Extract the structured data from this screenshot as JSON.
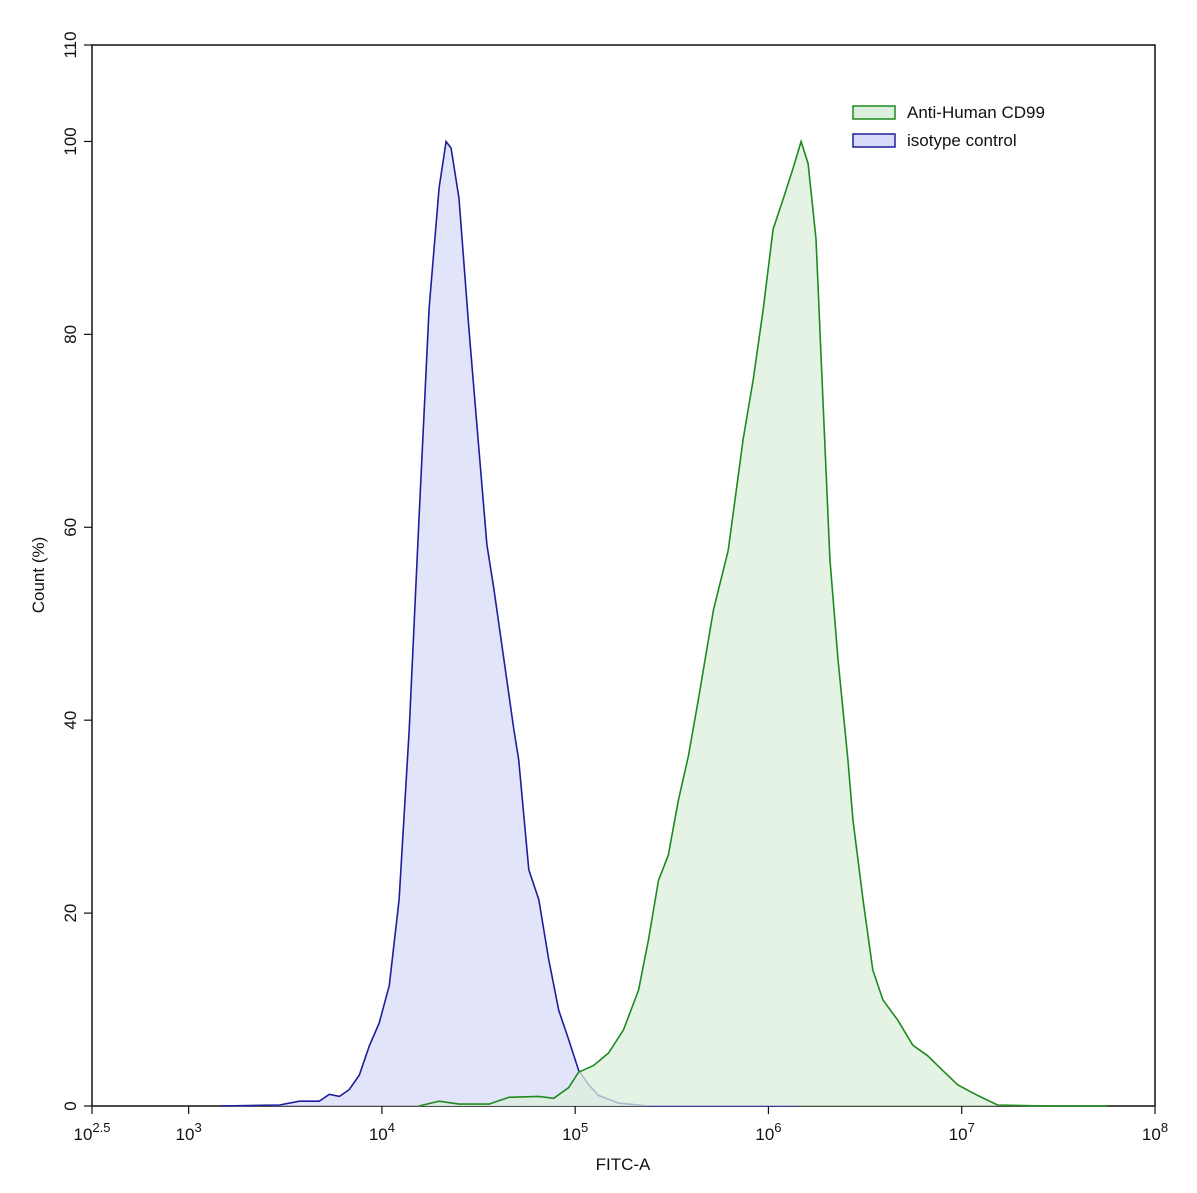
{
  "chart_data": {
    "type": "histogram-overlay",
    "x_label": "FITC-A",
    "y_label": "Count  (%)",
    "xscale": "log",
    "xlim": [
      316.2278,
      100000000
    ],
    "ylim": [
      0,
      110
    ],
    "xticks": [
      {
        "value": 316.2278,
        "label": "10",
        "exponent": "2.5"
      },
      {
        "value": 1000,
        "label": "10",
        "exponent": "3"
      },
      {
        "value": 10000,
        "label": "10",
        "exponent": "4"
      },
      {
        "value": 100000,
        "label": "10",
        "exponent": "5"
      },
      {
        "value": 1000000,
        "label": "10",
        "exponent": "6"
      },
      {
        "value": 10000000,
        "label": "10",
        "exponent": "7"
      },
      {
        "value": 100000000,
        "label": "10",
        "exponent": "8"
      }
    ],
    "yticks": [
      0,
      20,
      40,
      60,
      80,
      100,
      110
    ],
    "legend": "upper right",
    "series": [
      {
        "name": "isotype control",
        "color": "#1b1f9a",
        "fill": "#d8dbf7",
        "x": [
          1445,
          2951,
          3741,
          4742,
          5346,
          6026,
          6776,
          7638,
          8590,
          9683,
          10914,
          12275,
          13836,
          15560,
          17539,
          19770,
          21478,
          22798,
          25061,
          28184,
          31769,
          34914,
          37977,
          42756,
          48193,
          51050,
          57544,
          64863,
          72946,
          82224,
          92470,
          104200,
          117500,
          132100,
          167500,
          239300,
          1422000
        ],
        "values": [
          0,
          0.1,
          0.5,
          0.5,
          1.2,
          1.0,
          1.7,
          3.2,
          6.2,
          8.6,
          12.5,
          21.4,
          39.0,
          60.9,
          82.7,
          95.2,
          100,
          99.3,
          94.1,
          80.6,
          68.1,
          58.2,
          53.6,
          46.3,
          39.0,
          35.9,
          24.5,
          21.4,
          15.2,
          9.9,
          6.9,
          3.7,
          2.2,
          1.1,
          0.3,
          0,
          0
        ]
      },
      {
        "name": "Anti-Human CD99",
        "color": "#1e8a1e",
        "fill": "#dcefdc",
        "x": [
          15560,
          19770,
          25061,
          35800,
          45400,
          64900,
          77400,
          92500,
          104200,
          124500,
          148900,
          177800,
          212700,
          239300,
          269800,
          303400,
          342000,
          385500,
          433500,
          518800,
          619400,
          739600,
          833700,
          939700,
          1057000,
          1191000,
          1340000,
          1475000,
          1603000,
          1762000,
          1914000,
          2080000,
          2291000,
          2576000,
          2735000,
          3083000,
          3467000,
          3908000,
          4667000,
          5585000,
          6668000,
          7962000,
          9528000,
          12080000,
          15310000,
          27730000,
          56620000
        ],
        "values": [
          0,
          0.5,
          0.2,
          0.2,
          0.9,
          1.0,
          0.8,
          1.9,
          3.5,
          4.2,
          5.5,
          7.9,
          12.0,
          17.2,
          23.4,
          26.0,
          31.7,
          36.3,
          42.1,
          51.4,
          57.6,
          69.1,
          75.3,
          82.6,
          90.9,
          94.0,
          97.2,
          100,
          97.7,
          89.9,
          73.3,
          56.7,
          46.3,
          35.9,
          29.7,
          21.4,
          14.1,
          11.0,
          8.9,
          6.3,
          5.2,
          3.7,
          2.2,
          1.1,
          0.1,
          0,
          0
        ]
      }
    ]
  }
}
